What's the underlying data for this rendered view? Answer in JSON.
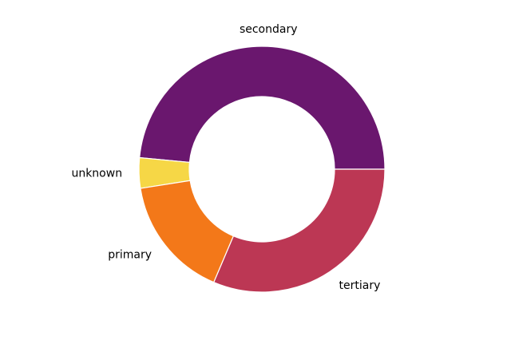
{
  "chart_data": {
    "type": "pie",
    "title": "",
    "donut": true,
    "categories": [
      "secondary",
      "unknown",
      "primary",
      "tertiary"
    ],
    "values": [
      48.5,
      4.0,
      16.1,
      31.4
    ],
    "colors": [
      "#6a176e",
      "#f6d746",
      "#f37819",
      "#bc3754"
    ],
    "start_angle_deg": 0,
    "direction": "counterclockwise"
  }
}
